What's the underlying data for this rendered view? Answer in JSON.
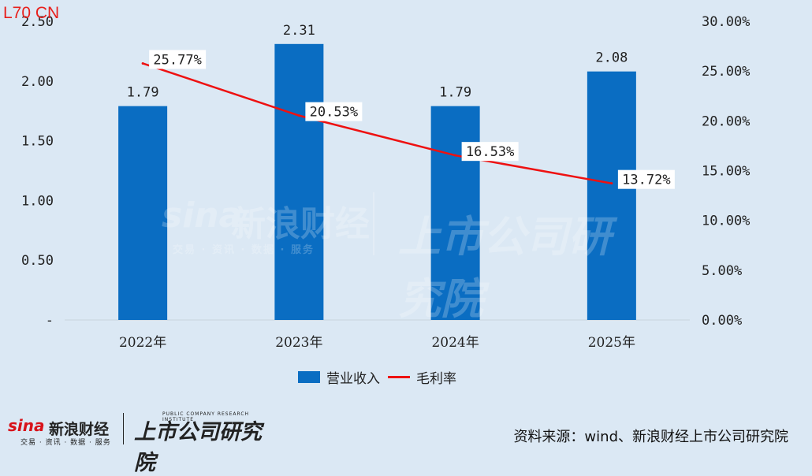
{
  "corner_tag": "L70 CN",
  "watermark": {
    "brand": "sina",
    "name": "新浪财经",
    "tagline": "交易 · 资讯 · 数据 · 服务",
    "institute": "上市公司研究院"
  },
  "footer_logo": {
    "brand": "sina",
    "name": "新浪财经",
    "tagline": "交易 · 资讯 · 数据 · 服务",
    "institute": "上市公司研究院",
    "institute_en": "PUBLIC COMPANY RESEARCH INSTITUTE"
  },
  "source": "资料来源：wind、新浪财经上市公司研究院",
  "legend": {
    "bar_label": "营业收入",
    "line_label": "毛利率"
  },
  "colors": {
    "background": "#dbe8f4",
    "bar": "#0a6dc2",
    "line": "#ee1111",
    "label_box": "#ffffff"
  },
  "chart_data": {
    "type": "bar",
    "categories": [
      "2022年",
      "2023年",
      "2024年",
      "2025年"
    ],
    "series": [
      {
        "name": "营业收入",
        "type": "bar",
        "axis": "left",
        "values": [
          1.79,
          2.31,
          1.79,
          2.08
        ],
        "labels": [
          "1.79",
          "2.31",
          "1.79",
          "2.08"
        ]
      },
      {
        "name": "毛利率",
        "type": "line",
        "axis": "right",
        "values": [
          25.77,
          20.53,
          16.53,
          13.72
        ],
        "labels": [
          "25.77%",
          "20.53%",
          "16.53%",
          "13.72%"
        ]
      }
    ],
    "y_left": {
      "ylim": [
        0,
        2.5
      ],
      "ticks": [
        0,
        0.5,
        1,
        1.5,
        2,
        2.5
      ],
      "tick_labels": [
        "-",
        "0.50",
        "1.00",
        "1.50",
        "2.00",
        "2.50"
      ]
    },
    "y_right": {
      "ylim": [
        0,
        30
      ],
      "ticks": [
        0,
        5,
        10,
        15,
        20,
        25,
        30
      ],
      "tick_labels": [
        "0.00%",
        "5.00%",
        "10.00%",
        "15.00%",
        "20.00%",
        "25.00%",
        "30.00%"
      ]
    },
    "grid": false,
    "legend_position": "bottom"
  }
}
